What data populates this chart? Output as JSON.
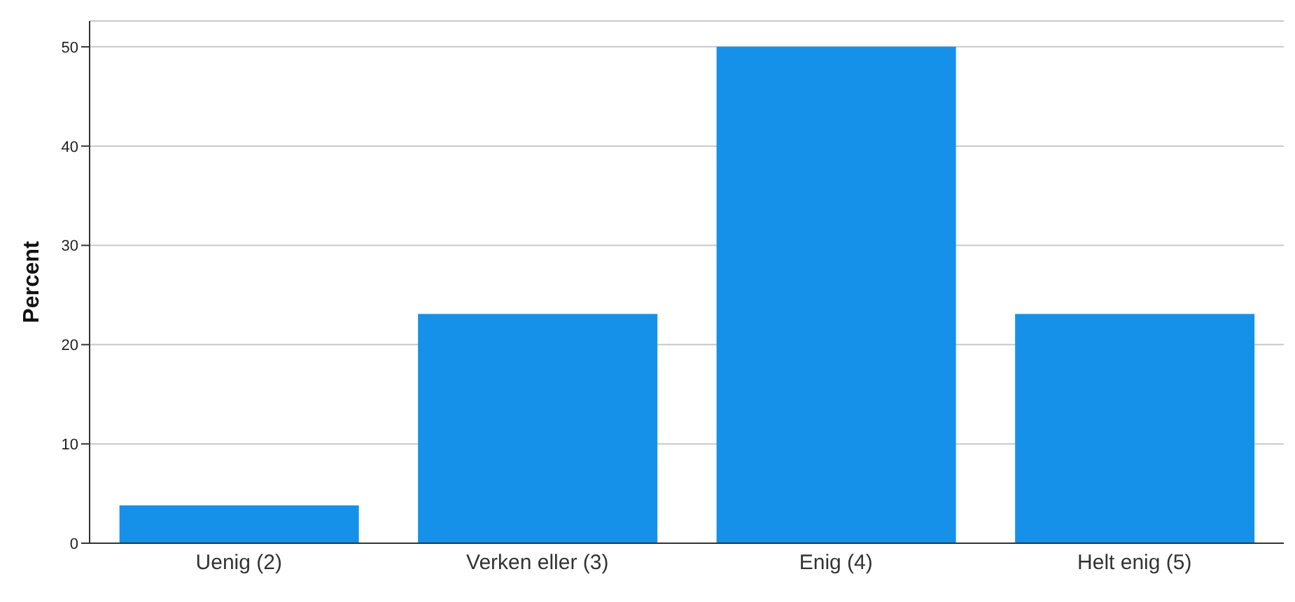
{
  "chart_data": {
    "type": "bar",
    "ylabel": "Percent",
    "categories": [
      "Uenig (2)",
      "Verken eller (3)",
      "Enig (4)",
      "Helt enig (5)"
    ],
    "values": [
      3.8,
      23.1,
      50,
      23.1
    ],
    "color": "#1591ea",
    "ylim": [
      0,
      52.6
    ],
    "yticks": [
      0,
      10,
      20,
      30,
      40,
      50
    ],
    "grid": "y"
  }
}
